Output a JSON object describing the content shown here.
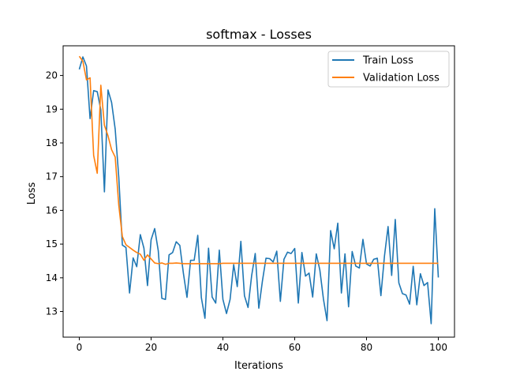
{
  "chart_data": {
    "type": "line",
    "title": "softmax - Losses",
    "xlabel": "Iterations",
    "ylabel": "Loss",
    "xlim": [
      -4.5,
      104.5
    ],
    "ylim": [
      12.24,
      20.88
    ],
    "xticks": [
      0,
      20,
      40,
      60,
      80,
      100
    ],
    "yticks": [
      13,
      14,
      15,
      16,
      17,
      18,
      19,
      20
    ],
    "grid": false,
    "legend_position": "top-right",
    "series": [
      {
        "name": "Train Loss",
        "color": "#1f77b4",
        "x": [
          0,
          1,
          2,
          3,
          4,
          5,
          6,
          7,
          8,
          9,
          10,
          11,
          12,
          13,
          14,
          15,
          16,
          17,
          18,
          19,
          20,
          21,
          22,
          23,
          24,
          25,
          26,
          27,
          28,
          29,
          30,
          31,
          32,
          33,
          34,
          35,
          36,
          37,
          38,
          39,
          40,
          41,
          42,
          43,
          44,
          45,
          46,
          47,
          48,
          49,
          50,
          51,
          52,
          53,
          54,
          55,
          56,
          57,
          58,
          59,
          60,
          61,
          62,
          63,
          64,
          65,
          66,
          67,
          68,
          69,
          70,
          71,
          72,
          73,
          74,
          75,
          76,
          77,
          78,
          79,
          80,
          81,
          82,
          83,
          84,
          85,
          86,
          87,
          88,
          89,
          90,
          91,
          92,
          93,
          94,
          95,
          96,
          97,
          98,
          99,
          100
        ],
        "values": [
          20.18,
          20.55,
          20.28,
          18.72,
          19.55,
          19.52,
          18.98,
          16.55,
          19.57,
          19.2,
          18.41,
          16.98,
          14.97,
          14.9,
          13.55,
          14.59,
          14.33,
          15.28,
          14.88,
          13.77,
          15.13,
          15.46,
          14.8,
          13.39,
          13.36,
          14.68,
          14.75,
          15.07,
          14.96,
          14.13,
          13.42,
          14.52,
          14.52,
          15.26,
          13.41,
          12.8,
          14.88,
          13.43,
          13.25,
          14.82,
          13.36,
          12.94,
          13.36,
          14.39,
          13.74,
          15.08,
          13.47,
          13.12,
          14.06,
          14.72,
          13.1,
          13.9,
          14.58,
          14.57,
          14.47,
          14.79,
          13.3,
          14.55,
          14.76,
          14.72,
          14.87,
          13.25,
          14.75,
          14.05,
          14.14,
          13.43,
          14.71,
          14.23,
          13.37,
          12.73,
          15.4,
          14.86,
          15.62,
          13.55,
          14.71,
          13.14,
          14.78,
          14.35,
          14.29,
          15.14,
          14.41,
          14.35,
          14.55,
          14.58,
          13.47,
          14.65,
          15.52,
          14.07,
          15.73,
          13.85,
          13.53,
          13.49,
          13.22,
          14.34,
          13.2,
          14.12,
          13.77,
          13.86,
          12.64,
          16.05,
          14.01
        ]
      },
      {
        "name": "Validation Loss",
        "color": "#ff7f0e",
        "x": [
          0,
          1,
          2,
          3,
          4,
          5,
          6,
          7,
          8,
          9,
          10,
          11,
          12,
          13,
          14,
          15,
          16,
          17,
          18,
          19,
          20,
          21,
          22,
          23,
          24,
          25,
          26,
          27,
          28,
          29,
          30,
          31,
          32,
          33,
          34,
          35,
          36,
          37,
          38,
          39,
          40,
          41,
          42,
          43,
          44,
          45,
          46,
          47,
          48,
          49,
          50,
          51,
          52,
          53,
          54,
          55,
          56,
          57,
          58,
          59,
          60,
          61,
          62,
          63,
          64,
          65,
          66,
          67,
          68,
          69,
          70,
          71,
          72,
          73,
          74,
          75,
          76,
          77,
          78,
          79,
          80,
          81,
          82,
          83,
          84,
          85,
          86,
          87,
          88,
          89,
          90,
          91,
          92,
          93,
          94,
          95,
          96,
          97,
          98,
          99,
          100
        ],
        "values": [
          20.57,
          20.42,
          19.87,
          19.93,
          17.63,
          17.1,
          19.71,
          18.52,
          18.21,
          17.8,
          17.58,
          16.15,
          15.22,
          14.98,
          14.9,
          14.82,
          14.75,
          14.7,
          14.52,
          14.68,
          14.56,
          14.44,
          14.42,
          14.44,
          14.4,
          14.43,
          14.43,
          14.44,
          14.43,
          14.42,
          14.42,
          14.42,
          14.42,
          14.42,
          14.42,
          14.42,
          14.42,
          14.42,
          14.42,
          14.42,
          14.43,
          14.43,
          14.43,
          14.43,
          14.43,
          14.43,
          14.43,
          14.43,
          14.43,
          14.43,
          14.43,
          14.43,
          14.43,
          14.43,
          14.43,
          14.43,
          14.43,
          14.43,
          14.43,
          14.43,
          14.43,
          14.43,
          14.43,
          14.43,
          14.43,
          14.43,
          14.43,
          14.43,
          14.43,
          14.43,
          14.43,
          14.43,
          14.43,
          14.43,
          14.43,
          14.43,
          14.43,
          14.43,
          14.43,
          14.43,
          14.43,
          14.43,
          14.43,
          14.43,
          14.43,
          14.43,
          14.43,
          14.43,
          14.43,
          14.43,
          14.43,
          14.43,
          14.43,
          14.43,
          14.43,
          14.43,
          14.43,
          14.43,
          14.43,
          14.43,
          14.43
        ]
      }
    ]
  }
}
